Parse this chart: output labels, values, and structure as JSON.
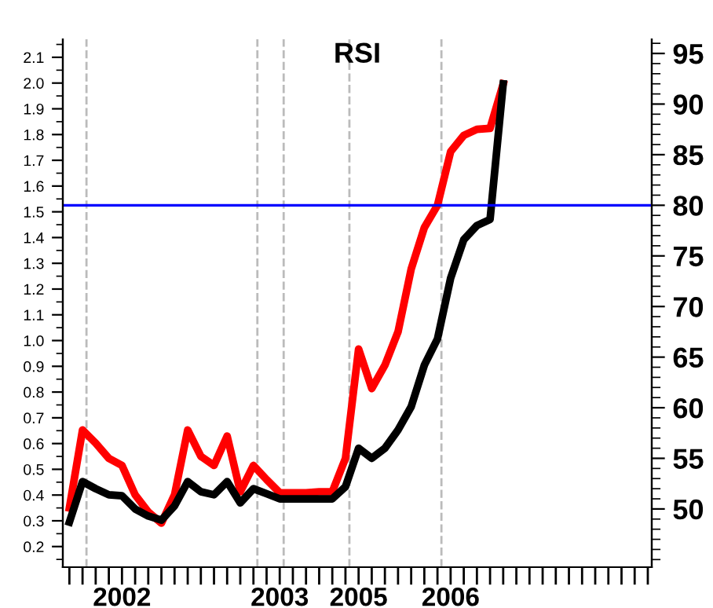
{
  "chart_data": {
    "type": "line",
    "title": "RSI",
    "categories": [
      null,
      null,
      null,
      null,
      "2002",
      null,
      null,
      null,
      null,
      null,
      null,
      null,
      null,
      null,
      null,
      null,
      "2003",
      null,
      null,
      null,
      null,
      null,
      "2005",
      null,
      null,
      null,
      null,
      null,
      null,
      "2006",
      null,
      null,
      null,
      null,
      null,
      null,
      null,
      null,
      null,
      null,
      null,
      null,
      null,
      null,
      null
    ],
    "series": [
      {
        "color": "#ff0000",
        "axis": "y2",
        "values": [
          50.1,
          57.8,
          56.5,
          55.0,
          54.3,
          51.4,
          49.7,
          48.6,
          51.4,
          57.8,
          55.2,
          54.3,
          57.2,
          51.7,
          54.3,
          52.9,
          51.6,
          51.6,
          51.6,
          51.7,
          51.7,
          55.0,
          65.8,
          61.9,
          64.2,
          67.5,
          73.7,
          77.8,
          80.0,
          85.3,
          86.9,
          87.5,
          87.6,
          92.0,
          null,
          null,
          null,
          null,
          null,
          null,
          null,
          null,
          null,
          null,
          null
        ]
      },
      {
        "color": "#000000",
        "axis": "y2",
        "values": [
          48.7,
          52.7,
          52.0,
          51.4,
          51.3,
          50.0,
          49.3,
          48.9,
          50.3,
          52.7,
          51.7,
          51.4,
          52.7,
          50.6,
          52.0,
          51.5,
          51.0,
          51.0,
          51.0,
          51.0,
          51.0,
          52.2,
          56.0,
          55.0,
          56.0,
          57.8,
          60.1,
          64.2,
          66.8,
          72.8,
          76.6,
          78.0,
          78.6,
          92.0,
          null,
          null,
          null,
          null,
          null,
          null,
          null,
          null,
          null,
          null,
          null
        ]
      }
    ],
    "ylim": [
      0.12,
      2.17
    ],
    "yticks": [
      0.2,
      0.3,
      0.4,
      0.5,
      0.6,
      0.7,
      0.8,
      0.9,
      {
        "value": 1.0,
        "label": "1.0"
      },
      1.1,
      1.2,
      1.3,
      1.4,
      1.5,
      1.6,
      1.7,
      1.8,
      1.9,
      {
        "value": 2.0,
        "label": "2.0"
      },
      2.1
    ],
    "y2lim": [
      44.25,
      96.4
    ],
    "y2ticks": [
      50,
      55,
      60,
      65,
      70,
      75,
      80,
      85,
      90,
      95
    ],
    "ref_lines": [
      {
        "axis": "y2",
        "value": 80,
        "color": "#0000ff",
        "line_style": "solid"
      }
    ],
    "grid": false,
    "legend": false,
    "marker": "none",
    "line_style": "solid"
  }
}
